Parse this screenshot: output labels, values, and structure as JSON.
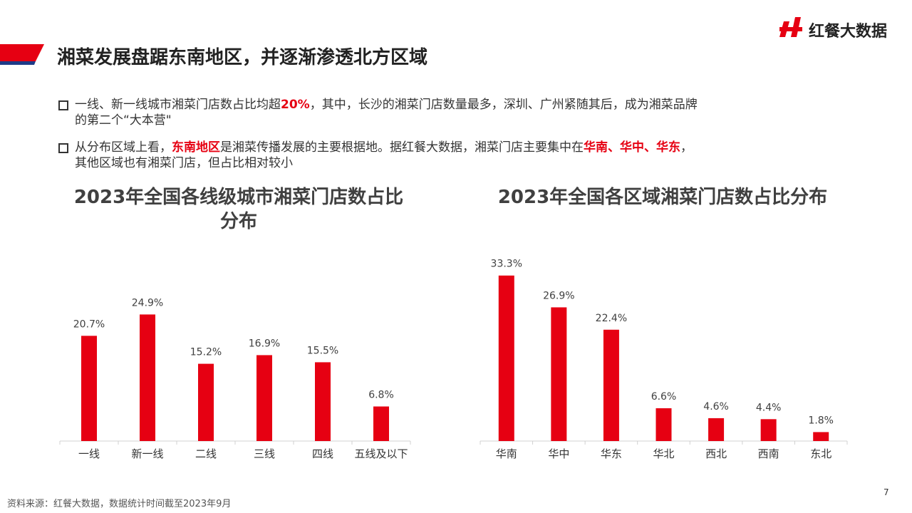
{
  "header": {
    "title": "湘菜发展盘踞东南地区，并逐渐渗透北方区域",
    "logo": "红餐大数据"
  },
  "bullets": [
    {
      "lines": [
        [
          {
            "text": "一线、新一线城市湘菜门店数占比均超",
            "highlight": false
          },
          {
            "text": "20%",
            "highlight": true
          },
          {
            "text": "，其中，长沙的湘菜门店数量最多，深圳、广州紧随其后，成为湘菜品牌",
            "highlight": false
          }
        ],
        [
          {
            "text": "的第二个“大本营\"",
            "highlight": false
          }
        ]
      ]
    },
    {
      "lines": [
        [
          {
            "text": "从分布区域上看，",
            "highlight": false
          },
          {
            "text": "东南地区",
            "highlight": true
          },
          {
            "text": "是湘菜传播发展的主要根据地。据红餐大数据，湘菜门店主要集中在",
            "highlight": false
          },
          {
            "text": "华南、华中、华东",
            "highlight": true
          },
          {
            "text": "，",
            "highlight": false
          }
        ],
        [
          {
            "text": "其他区域也有湘菜门店，但占比相对较小",
            "highlight": false
          }
        ]
      ]
    }
  ],
  "chart_data": [
    {
      "type": "bar",
      "title": "2023年全国各线级城市湘菜门店数占比分布",
      "categories": [
        "一线",
        "新一线",
        "二线",
        "三线",
        "四线",
        "五线及以下"
      ],
      "values": [
        20.7,
        24.9,
        15.2,
        16.9,
        15.5,
        6.8
      ],
      "value_labels": [
        "20.7%",
        "24.9%",
        "15.2%",
        "16.9%",
        "15.5%",
        "6.8%"
      ],
      "color": "#e60012",
      "ylim": [
        0,
        30
      ]
    },
    {
      "type": "bar",
      "title": "2023年全国各区域湘菜门店数占比分布",
      "categories": [
        "华南",
        "华中",
        "华东",
        "华北",
        "西北",
        "西南",
        "东北"
      ],
      "values": [
        33.3,
        26.9,
        22.4,
        6.6,
        4.6,
        4.4,
        1.8
      ],
      "value_labels": [
        "33.3%",
        "26.9%",
        "22.4%",
        "6.6%",
        "4.6%",
        "4.4%",
        "1.8%"
      ],
      "color": "#e60012",
      "ylim": [
        0,
        40
      ]
    }
  ],
  "source": "资料来源：红餐大数据，数据统计时间截至2023年9月",
  "page_number": "7"
}
